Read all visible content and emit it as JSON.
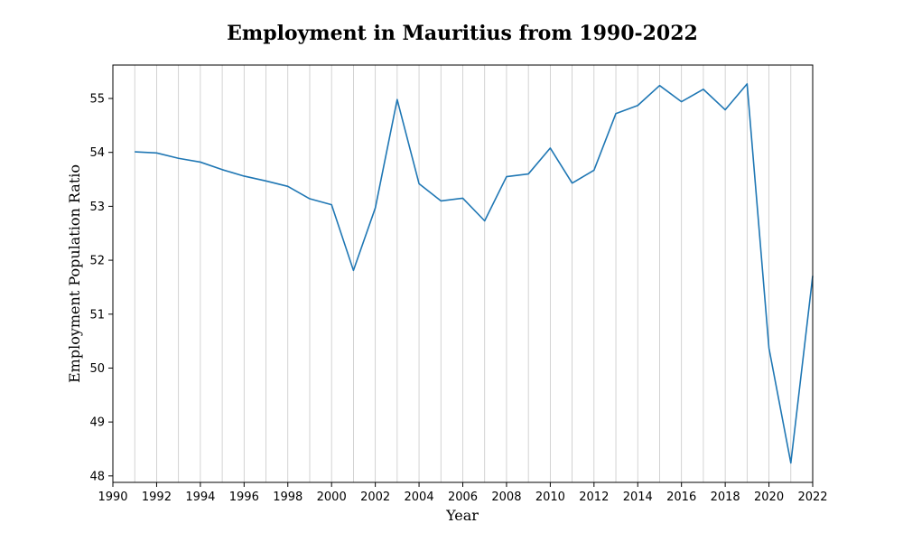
{
  "chart_data": {
    "type": "line",
    "title": "Employment in Mauritius from 1990-2022",
    "xlabel": "Year",
    "ylabel": "Employment Population Ratio",
    "xlim": [
      1990,
      2022
    ],
    "ylim": [
      47.88,
      55.62
    ],
    "x_ticks": [
      1990,
      1992,
      1994,
      1996,
      1998,
      2000,
      2002,
      2004,
      2006,
      2008,
      2010,
      2012,
      2014,
      2016,
      2018,
      2020,
      2022
    ],
    "y_ticks": [
      48,
      49,
      50,
      51,
      52,
      53,
      54,
      55
    ],
    "grid": "vertical lines at every year",
    "grid_x": [
      1990,
      1991,
      1992,
      1993,
      1994,
      1995,
      1996,
      1997,
      1998,
      1999,
      2000,
      2001,
      2002,
      2003,
      2004,
      2005,
      2006,
      2007,
      2008,
      2009,
      2010,
      2011,
      2012,
      2013,
      2014,
      2015,
      2016,
      2017,
      2018,
      2019,
      2020,
      2021,
      2022
    ],
    "color": "#1f77b4",
    "x": [
      1991,
      1992,
      1993,
      1994,
      1995,
      1996,
      1997,
      1998,
      1999,
      2000,
      2001,
      2002,
      2003,
      2004,
      2005,
      2006,
      2007,
      2008,
      2009,
      2010,
      2011,
      2012,
      2013,
      2014,
      2015,
      2016,
      2017,
      2018,
      2019,
      2020,
      2021,
      2022
    ],
    "y": [
      54.01,
      53.99,
      53.89,
      53.82,
      53.68,
      53.56,
      53.47,
      53.37,
      53.14,
      53.03,
      51.81,
      52.97,
      54.98,
      53.42,
      53.1,
      53.15,
      52.73,
      53.55,
      53.6,
      54.08,
      53.43,
      53.67,
      54.72,
      54.87,
      55.24,
      54.94,
      55.17,
      54.79,
      55.27,
      50.37,
      48.24,
      51.71
    ]
  }
}
